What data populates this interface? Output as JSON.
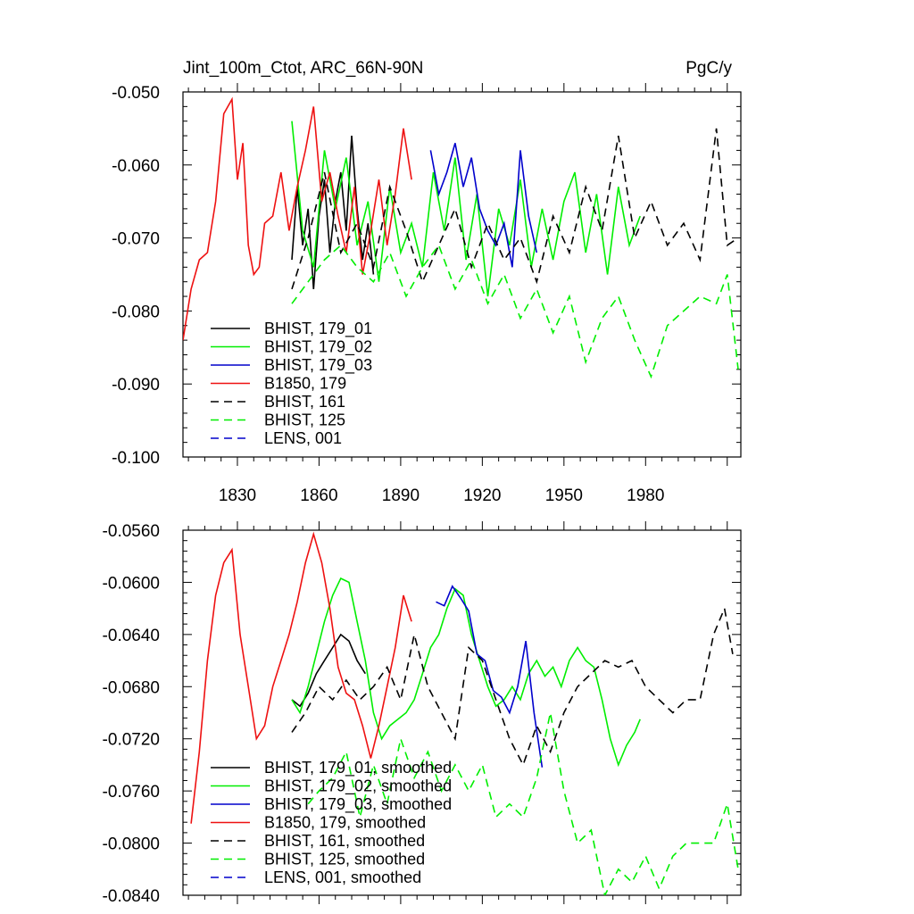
{
  "chart_data": [
    {
      "type": "line",
      "title": "Jint_100m_Ctot, ARC_66N-90N",
      "units": "PgC/y",
      "xlabel": "",
      "ylabel": "",
      "xlim": [
        1810,
        2015
      ],
      "ylim": [
        -0.1,
        -0.05
      ],
      "xticks": [
        1830,
        1860,
        1890,
        1920,
        1950,
        1980
      ],
      "xtick_labels": [
        "1830",
        "1860",
        "1890",
        "1920",
        "1950",
        "1980"
      ],
      "yticks": [
        -0.05,
        -0.06,
        -0.07,
        -0.08,
        -0.09,
        -0.1
      ],
      "ytick_labels": [
        "-0.050",
        "-0.060",
        "-0.070",
        "-0.080",
        "-0.090",
        "-0.100"
      ],
      "legend_location": "lower-left",
      "series": [
        {
          "name": "BHIST, 179_01",
          "color": "#000000",
          "dash": "solid",
          "x": [
            1850,
            1852,
            1854,
            1856,
            1858,
            1860,
            1862,
            1864,
            1866,
            1868,
            1870,
            1872,
            1874,
            1876,
            1878,
            1880
          ],
          "y": [
            -0.073,
            -0.063,
            -0.071,
            -0.066,
            -0.077,
            -0.067,
            -0.062,
            -0.072,
            -0.065,
            -0.061,
            -0.069,
            -0.056,
            -0.066,
            -0.073,
            -0.068,
            -0.075
          ]
        },
        {
          "name": "BHIST, 179_02",
          "color": "#00ee00",
          "dash": "solid",
          "x": [
            1850,
            1854,
            1858,
            1862,
            1866,
            1870,
            1874,
            1878,
            1882,
            1886,
            1890,
            1894,
            1898,
            1902,
            1906,
            1910,
            1914,
            1918,
            1922,
            1926,
            1930,
            1934,
            1938,
            1942,
            1946,
            1950,
            1954,
            1958,
            1962,
            1966,
            1970,
            1974,
            1978
          ],
          "y": [
            -0.054,
            -0.069,
            -0.074,
            -0.058,
            -0.066,
            -0.059,
            -0.071,
            -0.065,
            -0.076,
            -0.063,
            -0.072,
            -0.068,
            -0.074,
            -0.061,
            -0.069,
            -0.059,
            -0.073,
            -0.064,
            -0.078,
            -0.066,
            -0.071,
            -0.062,
            -0.074,
            -0.066,
            -0.073,
            -0.065,
            -0.061,
            -0.072,
            -0.064,
            -0.075,
            -0.063,
            -0.071,
            -0.067
          ]
        },
        {
          "name": "BHIST, 179_03",
          "color": "#0000cc",
          "dash": "solid",
          "x": [
            1901,
            1904,
            1907,
            1910,
            1913,
            1916,
            1919,
            1922,
            1925,
            1928,
            1931,
            1934,
            1937,
            1940
          ],
          "y": [
            -0.058,
            -0.064,
            -0.061,
            -0.057,
            -0.063,
            -0.059,
            -0.066,
            -0.069,
            -0.071,
            -0.068,
            -0.074,
            -0.058,
            -0.067,
            -0.072
          ]
        },
        {
          "name": "B1850, 179",
          "color": "#ee1111",
          "dash": "solid",
          "x": [
            1810,
            1813,
            1816,
            1819,
            1822,
            1825,
            1828,
            1830,
            1832,
            1834,
            1836,
            1838,
            1840,
            1843,
            1846,
            1849,
            1852,
            1855,
            1858,
            1861,
            1864,
            1867,
            1870,
            1873,
            1876,
            1879,
            1882,
            1885,
            1888,
            1891,
            1894
          ],
          "y": [
            -0.084,
            -0.077,
            -0.073,
            -0.072,
            -0.065,
            -0.053,
            -0.051,
            -0.062,
            -0.057,
            -0.071,
            -0.075,
            -0.074,
            -0.068,
            -0.067,
            -0.061,
            -0.069,
            -0.063,
            -0.058,
            -0.052,
            -0.065,
            -0.061,
            -0.067,
            -0.072,
            -0.063,
            -0.075,
            -0.069,
            -0.062,
            -0.071,
            -0.064,
            -0.055,
            -0.062
          ]
        },
        {
          "name": "BHIST, 161",
          "color": "#000000",
          "dash": "dashed",
          "x": [
            1850,
            1856,
            1862,
            1868,
            1874,
            1880,
            1886,
            1892,
            1898,
            1904,
            1910,
            1916,
            1922,
            1928,
            1934,
            1940,
            1946,
            1952,
            1958,
            1964,
            1970,
            1976,
            1982,
            1988,
            1994,
            2000,
            2006,
            2010,
            2014
          ],
          "y": [
            -0.077,
            -0.07,
            -0.061,
            -0.072,
            -0.068,
            -0.074,
            -0.063,
            -0.069,
            -0.076,
            -0.071,
            -0.066,
            -0.074,
            -0.068,
            -0.073,
            -0.07,
            -0.076,
            -0.067,
            -0.072,
            -0.063,
            -0.069,
            -0.056,
            -0.07,
            -0.065,
            -0.071,
            -0.068,
            -0.073,
            -0.055,
            -0.071,
            -0.07
          ]
        },
        {
          "name": "BHIST, 125",
          "color": "#00ee00",
          "dash": "dashed",
          "x": [
            1850,
            1856,
            1862,
            1868,
            1874,
            1880,
            1886,
            1892,
            1898,
            1904,
            1910,
            1916,
            1922,
            1928,
            1934,
            1940,
            1946,
            1952,
            1958,
            1964,
            1970,
            1976,
            1982,
            1988,
            1994,
            2000,
            2006,
            2010,
            2014
          ],
          "y": [
            -0.079,
            -0.076,
            -0.073,
            -0.071,
            -0.074,
            -0.076,
            -0.072,
            -0.078,
            -0.074,
            -0.071,
            -0.077,
            -0.073,
            -0.079,
            -0.075,
            -0.081,
            -0.077,
            -0.083,
            -0.078,
            -0.087,
            -0.081,
            -0.078,
            -0.084,
            -0.089,
            -0.082,
            -0.08,
            -0.078,
            -0.079,
            -0.075,
            -0.088
          ]
        },
        {
          "name": "LENS, 001",
          "color": "#0000cc",
          "dash": "dashed",
          "x": [],
          "y": []
        }
      ]
    },
    {
      "type": "line",
      "title": "",
      "xlabel": "",
      "ylabel": "",
      "xlim": [
        1810,
        2015
      ],
      "ylim": [
        -0.084,
        -0.056
      ],
      "xticks": [
        1830,
        1860,
        1890,
        1920,
        1950,
        1980
      ],
      "yticks": [
        -0.056,
        -0.06,
        -0.064,
        -0.068,
        -0.072,
        -0.076,
        -0.08,
        -0.084
      ],
      "ytick_labels": [
        "-0.0560",
        "-0.0600",
        "-0.0640",
        "-0.0680",
        "-0.0720",
        "-0.0760",
        "-0.0800",
        "-0.0840"
      ],
      "legend_location": "lower-left",
      "series": [
        {
          "name": "BHIST, 179_01, smoothed",
          "color": "#000000",
          "dash": "solid",
          "x": [
            1850,
            1853,
            1856,
            1859,
            1862,
            1865,
            1868,
            1871,
            1874,
            1877
          ],
          "y": [
            -0.069,
            -0.0695,
            -0.0685,
            -0.067,
            -0.066,
            -0.065,
            -0.064,
            -0.0645,
            -0.066,
            -0.067
          ]
        },
        {
          "name": "BHIST, 179_02, smoothed",
          "color": "#00ee00",
          "dash": "solid",
          "x": [
            1850,
            1853,
            1856,
            1859,
            1862,
            1865,
            1868,
            1871,
            1874,
            1877,
            1880,
            1883,
            1886,
            1889,
            1892,
            1895,
            1898,
            1901,
            1904,
            1907,
            1910,
            1913,
            1916,
            1919,
            1922,
            1925,
            1928,
            1931,
            1934,
            1937,
            1940,
            1943,
            1946,
            1949,
            1952,
            1955,
            1958,
            1961,
            1964,
            1967,
            1970,
            1973,
            1976,
            1978
          ],
          "y": [
            -0.069,
            -0.07,
            -0.068,
            -0.0655,
            -0.063,
            -0.061,
            -0.0597,
            -0.06,
            -0.063,
            -0.066,
            -0.07,
            -0.072,
            -0.071,
            -0.0705,
            -0.07,
            -0.069,
            -0.067,
            -0.065,
            -0.064,
            -0.062,
            -0.0605,
            -0.061,
            -0.064,
            -0.066,
            -0.068,
            -0.0695,
            -0.069,
            -0.068,
            -0.069,
            -0.067,
            -0.066,
            -0.0672,
            -0.0665,
            -0.068,
            -0.066,
            -0.065,
            -0.066,
            -0.0665,
            -0.069,
            -0.072,
            -0.074,
            -0.0725,
            -0.0715,
            -0.0705
          ]
        },
        {
          "name": "BHIST, 179_03, smoothed",
          "color": "#0000cc",
          "dash": "solid",
          "x": [
            1903,
            1906,
            1909,
            1912,
            1915,
            1918,
            1921,
            1924,
            1927,
            1930,
            1933,
            1936,
            1939,
            1942
          ],
          "y": [
            -0.0615,
            -0.0618,
            -0.0603,
            -0.0612,
            -0.0622,
            -0.0655,
            -0.066,
            -0.0683,
            -0.0688,
            -0.07,
            -0.068,
            -0.0645,
            -0.07,
            -0.0742
          ]
        },
        {
          "name": "B1850, 179, smoothed",
          "color": "#ee1111",
          "dash": "solid",
          "x": [
            1813,
            1816,
            1819,
            1822,
            1825,
            1828,
            1831,
            1834,
            1837,
            1840,
            1843,
            1846,
            1849,
            1852,
            1855,
            1858,
            1861,
            1864,
            1867,
            1870,
            1873,
            1876,
            1879,
            1882,
            1885,
            1888,
            1891,
            1894
          ],
          "y": [
            -0.0785,
            -0.073,
            -0.066,
            -0.061,
            -0.0585,
            -0.0575,
            -0.064,
            -0.068,
            -0.072,
            -0.071,
            -0.068,
            -0.066,
            -0.064,
            -0.0615,
            -0.0585,
            -0.0563,
            -0.0585,
            -0.062,
            -0.0665,
            -0.0685,
            -0.069,
            -0.071,
            -0.0735,
            -0.071,
            -0.068,
            -0.065,
            -0.061,
            -0.063
          ]
        },
        {
          "name": "BHIST, 161, smoothed",
          "color": "#000000",
          "dash": "dashed",
          "x": [
            1850,
            1855,
            1860,
            1865,
            1870,
            1875,
            1880,
            1885,
            1890,
            1895,
            1900,
            1905,
            1910,
            1915,
            1920,
            1925,
            1930,
            1935,
            1940,
            1945,
            1950,
            1955,
            1960,
            1965,
            1970,
            1975,
            1980,
            1985,
            1990,
            1995,
            2000,
            2005,
            2009,
            2012
          ],
          "y": [
            -0.0715,
            -0.07,
            -0.068,
            -0.069,
            -0.0675,
            -0.069,
            -0.068,
            -0.0665,
            -0.069,
            -0.064,
            -0.068,
            -0.07,
            -0.072,
            -0.065,
            -0.066,
            -0.069,
            -0.072,
            -0.074,
            -0.071,
            -0.073,
            -0.07,
            -0.068,
            -0.067,
            -0.066,
            -0.0665,
            -0.066,
            -0.068,
            -0.069,
            -0.07,
            -0.069,
            -0.069,
            -0.064,
            -0.062,
            -0.0655
          ]
        },
        {
          "name": "BHIST, 125, smoothed",
          "color": "#00ee00",
          "dash": "dashed",
          "x": [
            1856,
            1860,
            1865,
            1870,
            1875,
            1880,
            1885,
            1890,
            1895,
            1900,
            1905,
            1910,
            1915,
            1920,
            1925,
            1930,
            1935,
            1940,
            1945,
            1950,
            1955,
            1960,
            1965,
            1970,
            1975,
            1980,
            1985,
            1990,
            1995,
            2000,
            2005,
            2010,
            2014
          ],
          "y": [
            -0.077,
            -0.076,
            -0.075,
            -0.073,
            -0.078,
            -0.074,
            -0.077,
            -0.072,
            -0.075,
            -0.073,
            -0.076,
            -0.074,
            -0.076,
            -0.074,
            -0.078,
            -0.077,
            -0.078,
            -0.075,
            -0.07,
            -0.076,
            -0.08,
            -0.079,
            -0.084,
            -0.082,
            -0.083,
            -0.081,
            -0.0835,
            -0.081,
            -0.08,
            -0.08,
            -0.08,
            -0.077,
            -0.082
          ]
        },
        {
          "name": "LENS, 001, smoothed",
          "color": "#0000cc",
          "dash": "dashed",
          "x": [],
          "y": []
        }
      ]
    }
  ]
}
